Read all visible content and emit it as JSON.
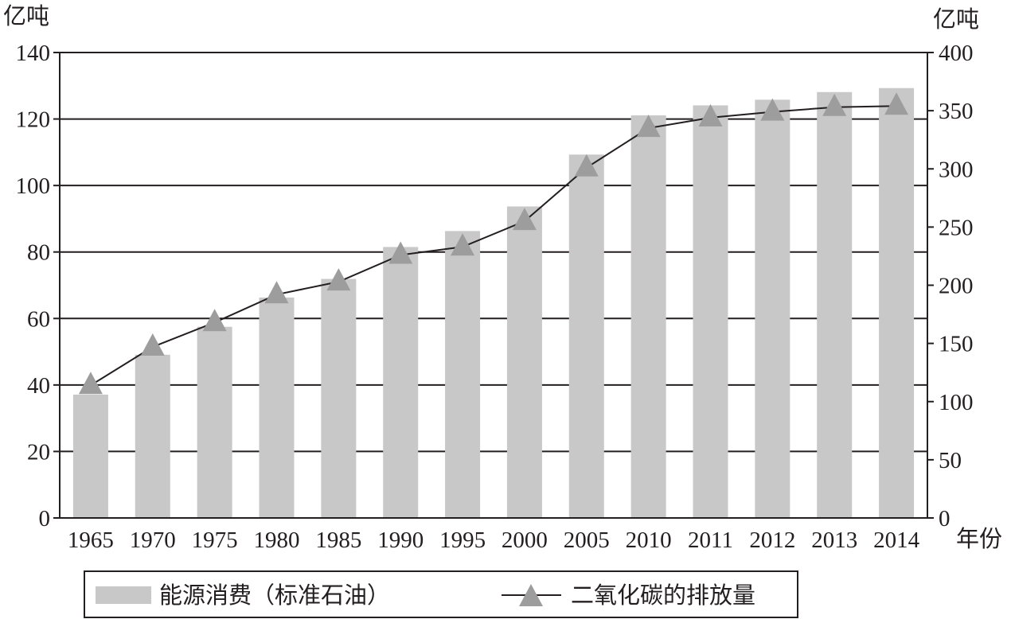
{
  "chart_data": {
    "type": "bar",
    "categories": [
      "1965",
      "1970",
      "1975",
      "1980",
      "1985",
      "1990",
      "1995",
      "2000",
      "2005",
      "2010",
      "2011",
      "2012",
      "2013",
      "2014"
    ],
    "series": [
      {
        "name": "能源消费（标准石油）",
        "type": "bar",
        "axis": "left",
        "values": [
          37.1,
          49.1,
          57.5,
          66.3,
          71.9,
          81.5,
          86.3,
          93.7,
          109.3,
          121.1,
          124.1,
          125.8,
          128.1,
          129.3
        ],
        "color": "#c8c8c8"
      },
      {
        "name": "二氧化碳的排放量",
        "type": "line",
        "axis": "right",
        "marker": "triangle",
        "values": [
          114,
          147,
          168,
          192,
          203,
          226,
          233,
          255,
          301,
          335,
          344,
          349,
          353,
          354
        ],
        "color": "#231f20",
        "marker_color": "#9d9d9d"
      }
    ],
    "y_left": {
      "unit": "亿吨",
      "ylim": [
        0,
        140
      ],
      "ticks": [
        "0",
        "20",
        "40",
        "60",
        "80",
        "100",
        "120",
        "140"
      ]
    },
    "y_right": {
      "unit": "亿吨",
      "ylim": [
        0,
        400
      ],
      "ticks": [
        "0",
        "50",
        "100",
        "150",
        "200",
        "250",
        "300",
        "350",
        "400"
      ]
    },
    "x_unit": "年份",
    "grid": "horizontal",
    "legend_position": "bottom-left"
  }
}
